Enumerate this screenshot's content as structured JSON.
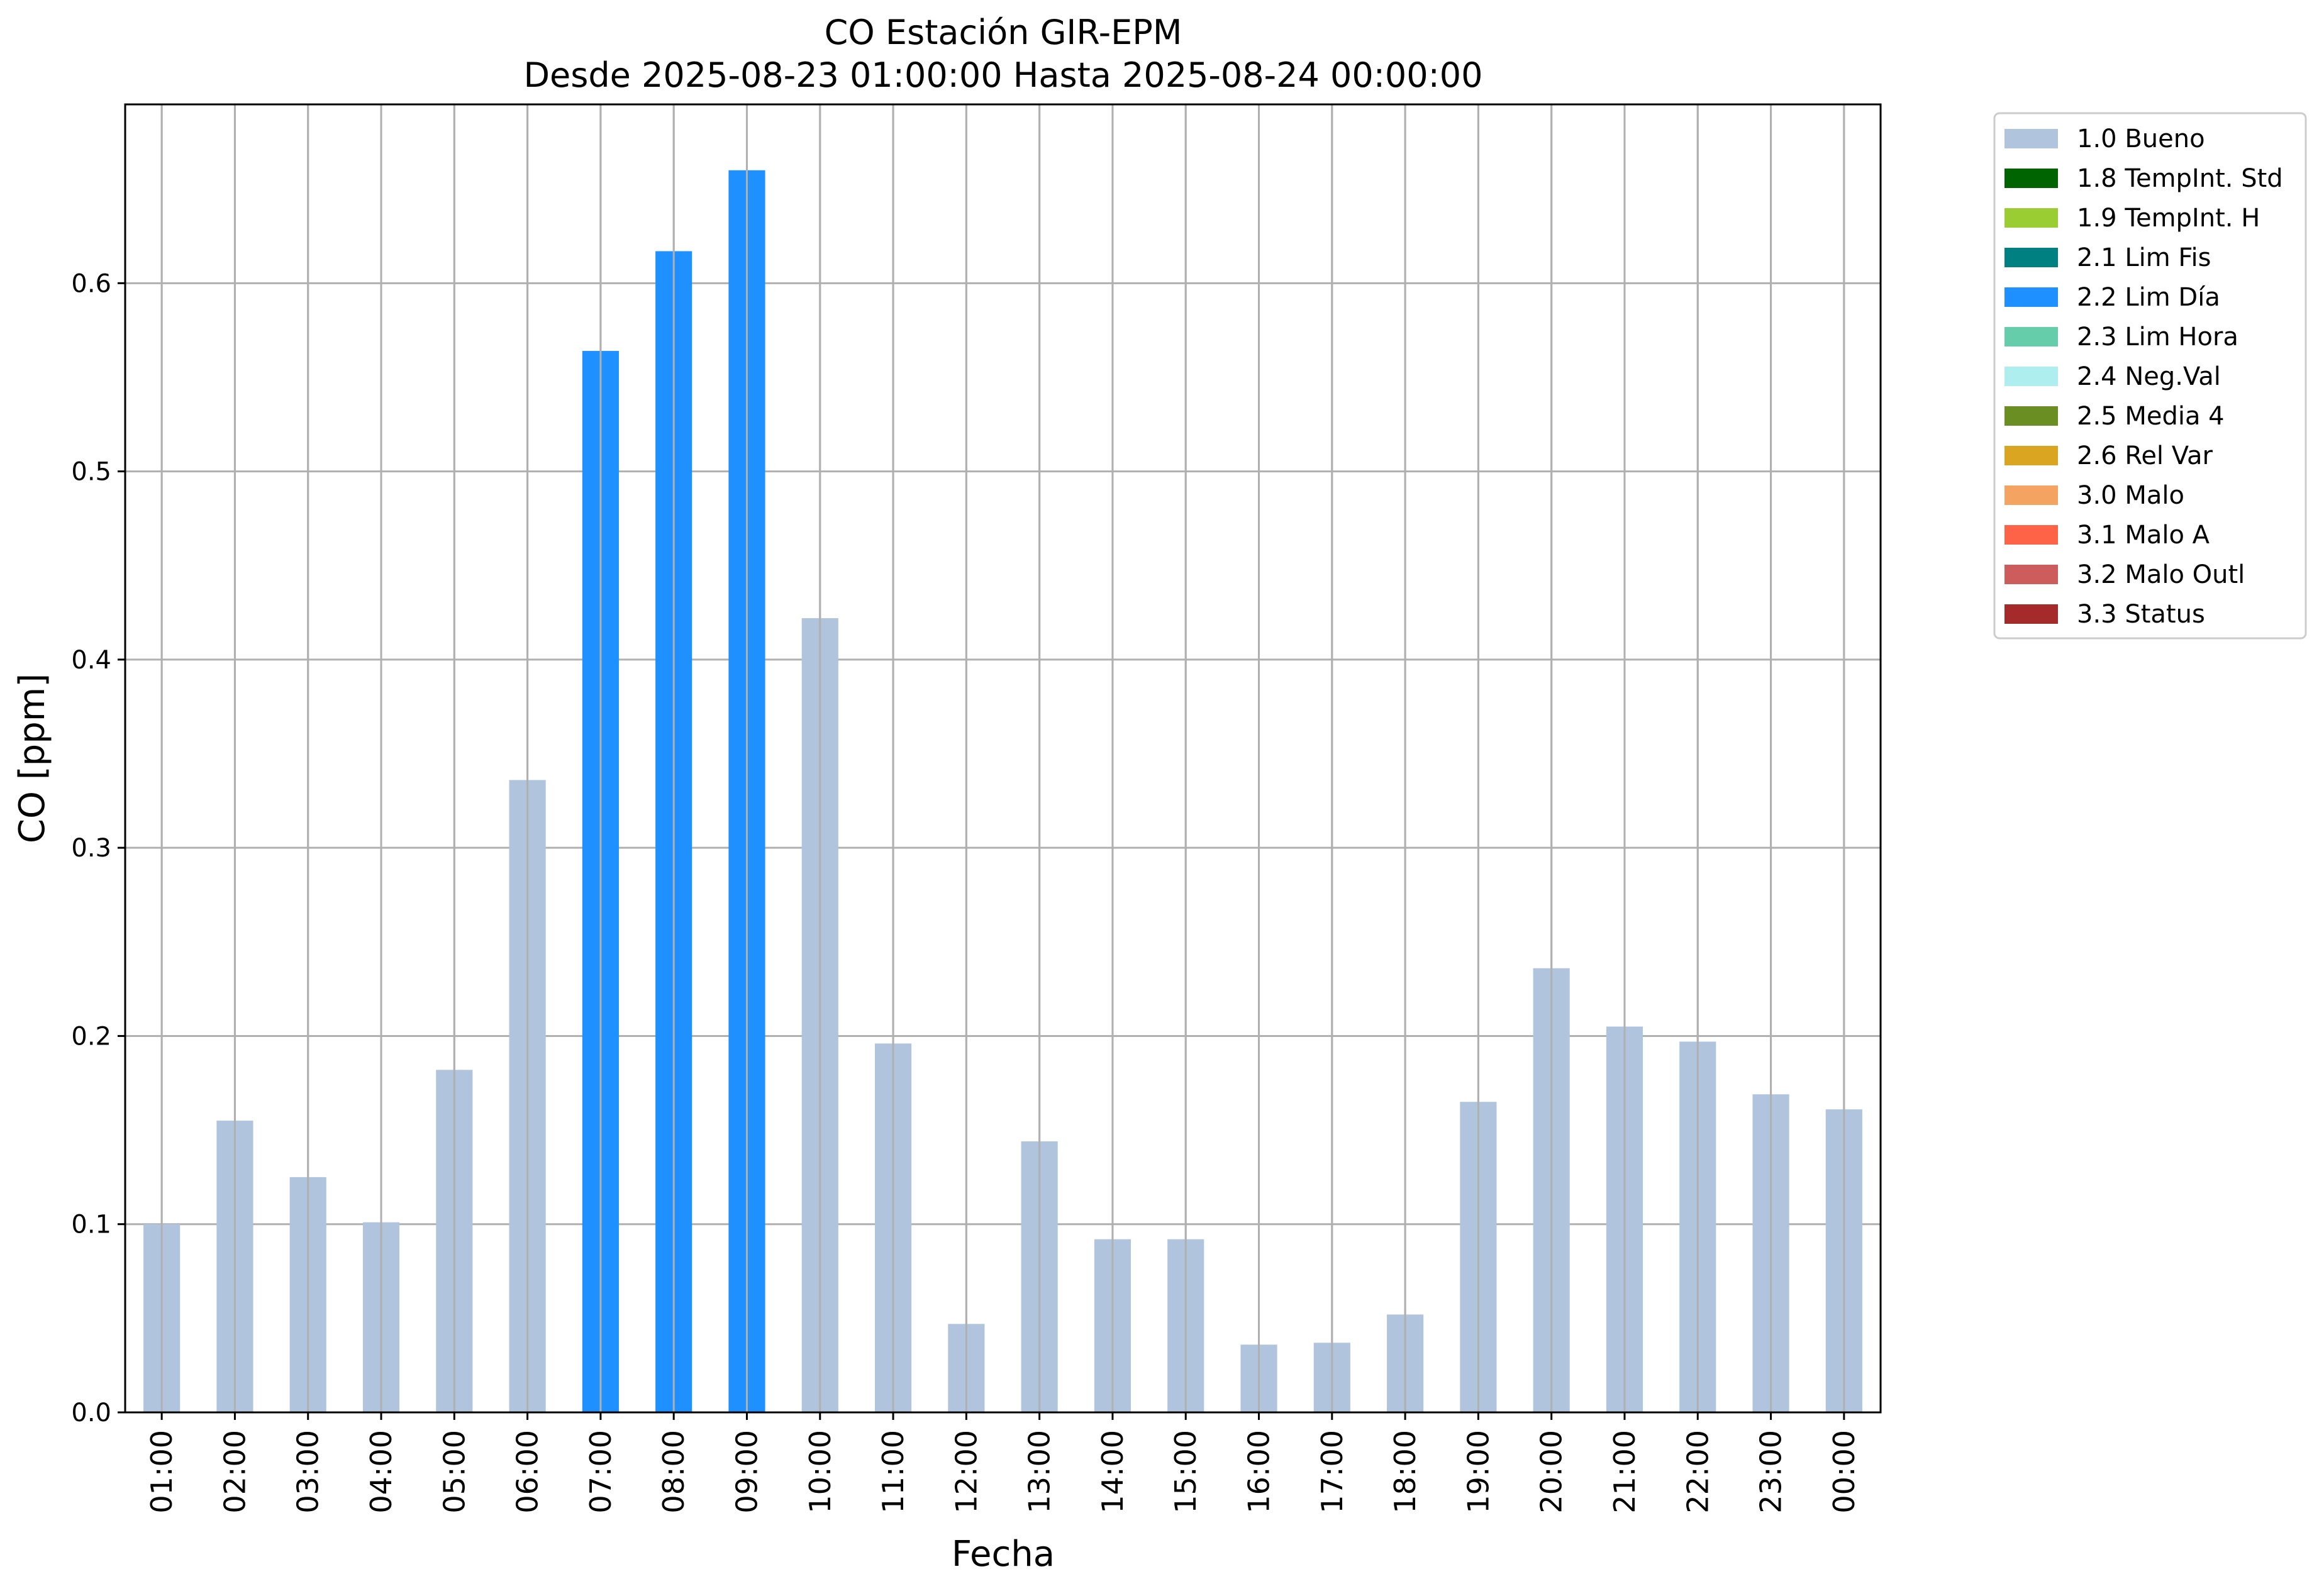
{
  "chart_data": {
    "type": "bar",
    "title": "CO Estación GIR-EPM",
    "subtitle": "Desde 2025-08-23 01:00:00 Hasta 2025-08-24 00:00:00",
    "xlabel": "Fecha",
    "ylabel": "CO [ppm]",
    "ylim": [
      0,
      0.695
    ],
    "yticks": [
      0.0,
      0.1,
      0.2,
      0.3,
      0.4,
      0.5,
      0.6
    ],
    "ytick_labels": [
      "0.0",
      "0.1",
      "0.2",
      "0.3",
      "0.4",
      "0.5",
      "0.6"
    ],
    "grid": true,
    "legend_position": "outside right, top",
    "categories": [
      "01:00",
      "02:00",
      "03:00",
      "04:00",
      "05:00",
      "06:00",
      "07:00",
      "08:00",
      "09:00",
      "10:00",
      "11:00",
      "12:00",
      "13:00",
      "14:00",
      "15:00",
      "16:00",
      "17:00",
      "18:00",
      "19:00",
      "20:00",
      "21:00",
      "22:00",
      "23:00",
      "00:00"
    ],
    "values": [
      0.1,
      0.155,
      0.125,
      0.101,
      0.182,
      0.336,
      0.564,
      0.617,
      0.66,
      0.422,
      0.196,
      0.047,
      0.144,
      0.092,
      0.092,
      0.036,
      0.037,
      0.052,
      0.165,
      0.236,
      0.205,
      0.197,
      0.169,
      0.161
    ],
    "flags": [
      "1.0 Bueno",
      "1.0 Bueno",
      "1.0 Bueno",
      "1.0 Bueno",
      "1.0 Bueno",
      "1.0 Bueno",
      "2.2 Lim Día",
      "2.2 Lim Día",
      "2.2 Lim Día",
      "1.0 Bueno",
      "1.0 Bueno",
      "1.0 Bueno",
      "1.0 Bueno",
      "1.0 Bueno",
      "1.0 Bueno",
      "1.0 Bueno",
      "1.0 Bueno",
      "1.0 Bueno",
      "1.0 Bueno",
      "1.0 Bueno",
      "1.0 Bueno",
      "1.0 Bueno",
      "1.0 Bueno",
      "1.0 Bueno"
    ],
    "legend": [
      {
        "label": "1.0 Bueno",
        "color": "#b0c4de"
      },
      {
        "label": "1.8 TempInt. Std",
        "color": "#006400"
      },
      {
        "label": "1.9 TempInt. H",
        "color": "#9acd32"
      },
      {
        "label": "2.1 Lim Fis",
        "color": "#008080"
      },
      {
        "label": "2.2 Lim Día",
        "color": "#1e90ff"
      },
      {
        "label": "2.3 Lim Hora",
        "color": "#66cdaa"
      },
      {
        "label": "2.4 Neg.Val",
        "color": "#afeeee"
      },
      {
        "label": "2.5 Media 4",
        "color": "#6b8e23"
      },
      {
        "label": "2.6 Rel Var",
        "color": "#daa520"
      },
      {
        "label": "3.0 Malo",
        "color": "#f4a460"
      },
      {
        "label": "3.1 Malo A",
        "color": "#ff6347"
      },
      {
        "label": "3.2 Malo Outl",
        "color": "#cd5c5c"
      },
      {
        "label": "3.3 Status",
        "color": "#a52a2a"
      }
    ]
  }
}
